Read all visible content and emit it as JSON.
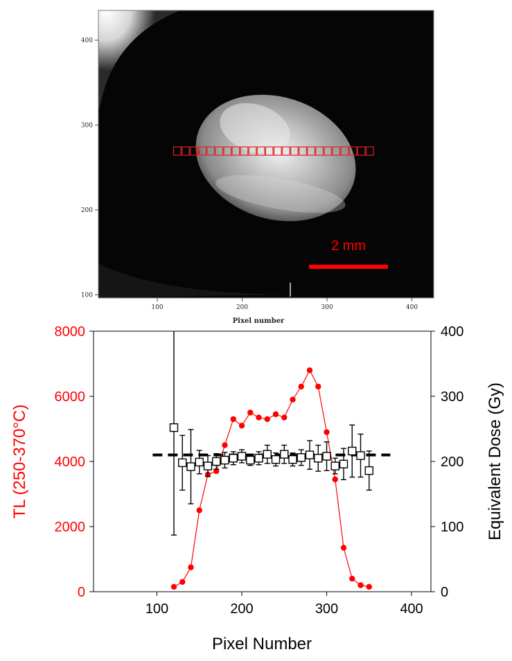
{
  "image_panel": {
    "x_ticks": [
      "100",
      "200",
      "300",
      "400"
    ],
    "x_tick_values": [
      100,
      200,
      300,
      400
    ],
    "y_ticks": [
      "100",
      "200",
      "300",
      "400"
    ],
    "y_tick_values": [
      100,
      200,
      300,
      400
    ],
    "xlabel": "Pixel number",
    "scale_bar_label": "2 mm",
    "scale_bar_color": "#ff0000",
    "roi_color": "#dd2222"
  },
  "chart_data": {
    "type": "line",
    "xlabel": "Pixel Number",
    "ylabel_left": "TL (250-370°C)",
    "ylabel_right": "Equivalent Dose (Gy)",
    "xlim": [
      30,
      420
    ],
    "ylim_left": [
      0,
      8000
    ],
    "ylim_right": [
      0,
      400
    ],
    "x_ticks": [
      100,
      200,
      300,
      400
    ],
    "y_ticks_left": [
      0,
      2000,
      4000,
      6000,
      8000
    ],
    "y_ticks_right": [
      0,
      100,
      200,
      300,
      400
    ],
    "left_color": "#ff0000",
    "right_color": "#000000",
    "series": [
      {
        "axis": "left",
        "marker": "filled-circle",
        "color": "#ff0000",
        "x": [
          120,
          130,
          140,
          150,
          160,
          170,
          180,
          190,
          200,
          210,
          220,
          230,
          240,
          250,
          260,
          270,
          280,
          290,
          300,
          310,
          320,
          330,
          340,
          350
        ],
        "values": [
          150,
          300,
          750,
          2500,
          3600,
          3700,
          4500,
          5300,
          5100,
          5500,
          5350,
          5300,
          5450,
          5350,
          5900,
          6300,
          6800,
          6300,
          4900,
          3450,
          1350,
          400,
          200,
          150
        ]
      },
      {
        "axis": "right",
        "marker": "open-square",
        "color": "#000000",
        "x": [
          120,
          130,
          140,
          150,
          160,
          170,
          180,
          190,
          200,
          210,
          220,
          230,
          240,
          250,
          260,
          270,
          280,
          290,
          300,
          310,
          320,
          330,
          340,
          350
        ],
        "values": [
          252,
          198,
          192,
          199,
          193,
          200,
          202,
          205,
          208,
          202,
          205,
          211,
          203,
          211,
          203,
          206,
          210,
          205,
          208,
          193,
          196,
          216,
          209,
          186
        ],
        "err": [
          165,
          42,
          57,
          18,
          16,
          12,
          12,
          10,
          10,
          8,
          10,
          14,
          10,
          14,
          10,
          12,
          22,
          20,
          22,
          12,
          24,
          40,
          33,
          30
        ]
      }
    ],
    "reference_line": {
      "axis": "right",
      "value": 210,
      "x_range": [
        95,
        375
      ],
      "style": "dashed",
      "color": "#000000"
    }
  }
}
